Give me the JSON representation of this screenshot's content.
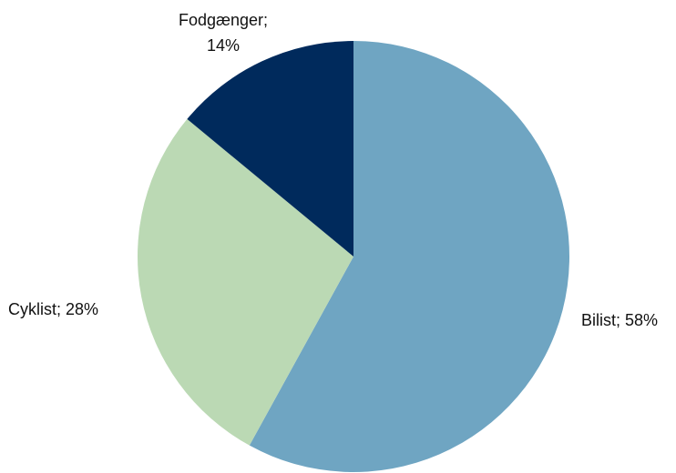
{
  "chart_data": {
    "type": "pie",
    "categories": [
      "Bilist",
      "Cyklist",
      "Fodgænger"
    ],
    "values": [
      58,
      28,
      14
    ],
    "value_labels": [
      "Bilist; 58%",
      "Cyklist; 28%",
      "Fodgænger; 14%"
    ],
    "colors": [
      "#6fa5c2",
      "#bbd9b4",
      "#002a5c"
    ]
  }
}
